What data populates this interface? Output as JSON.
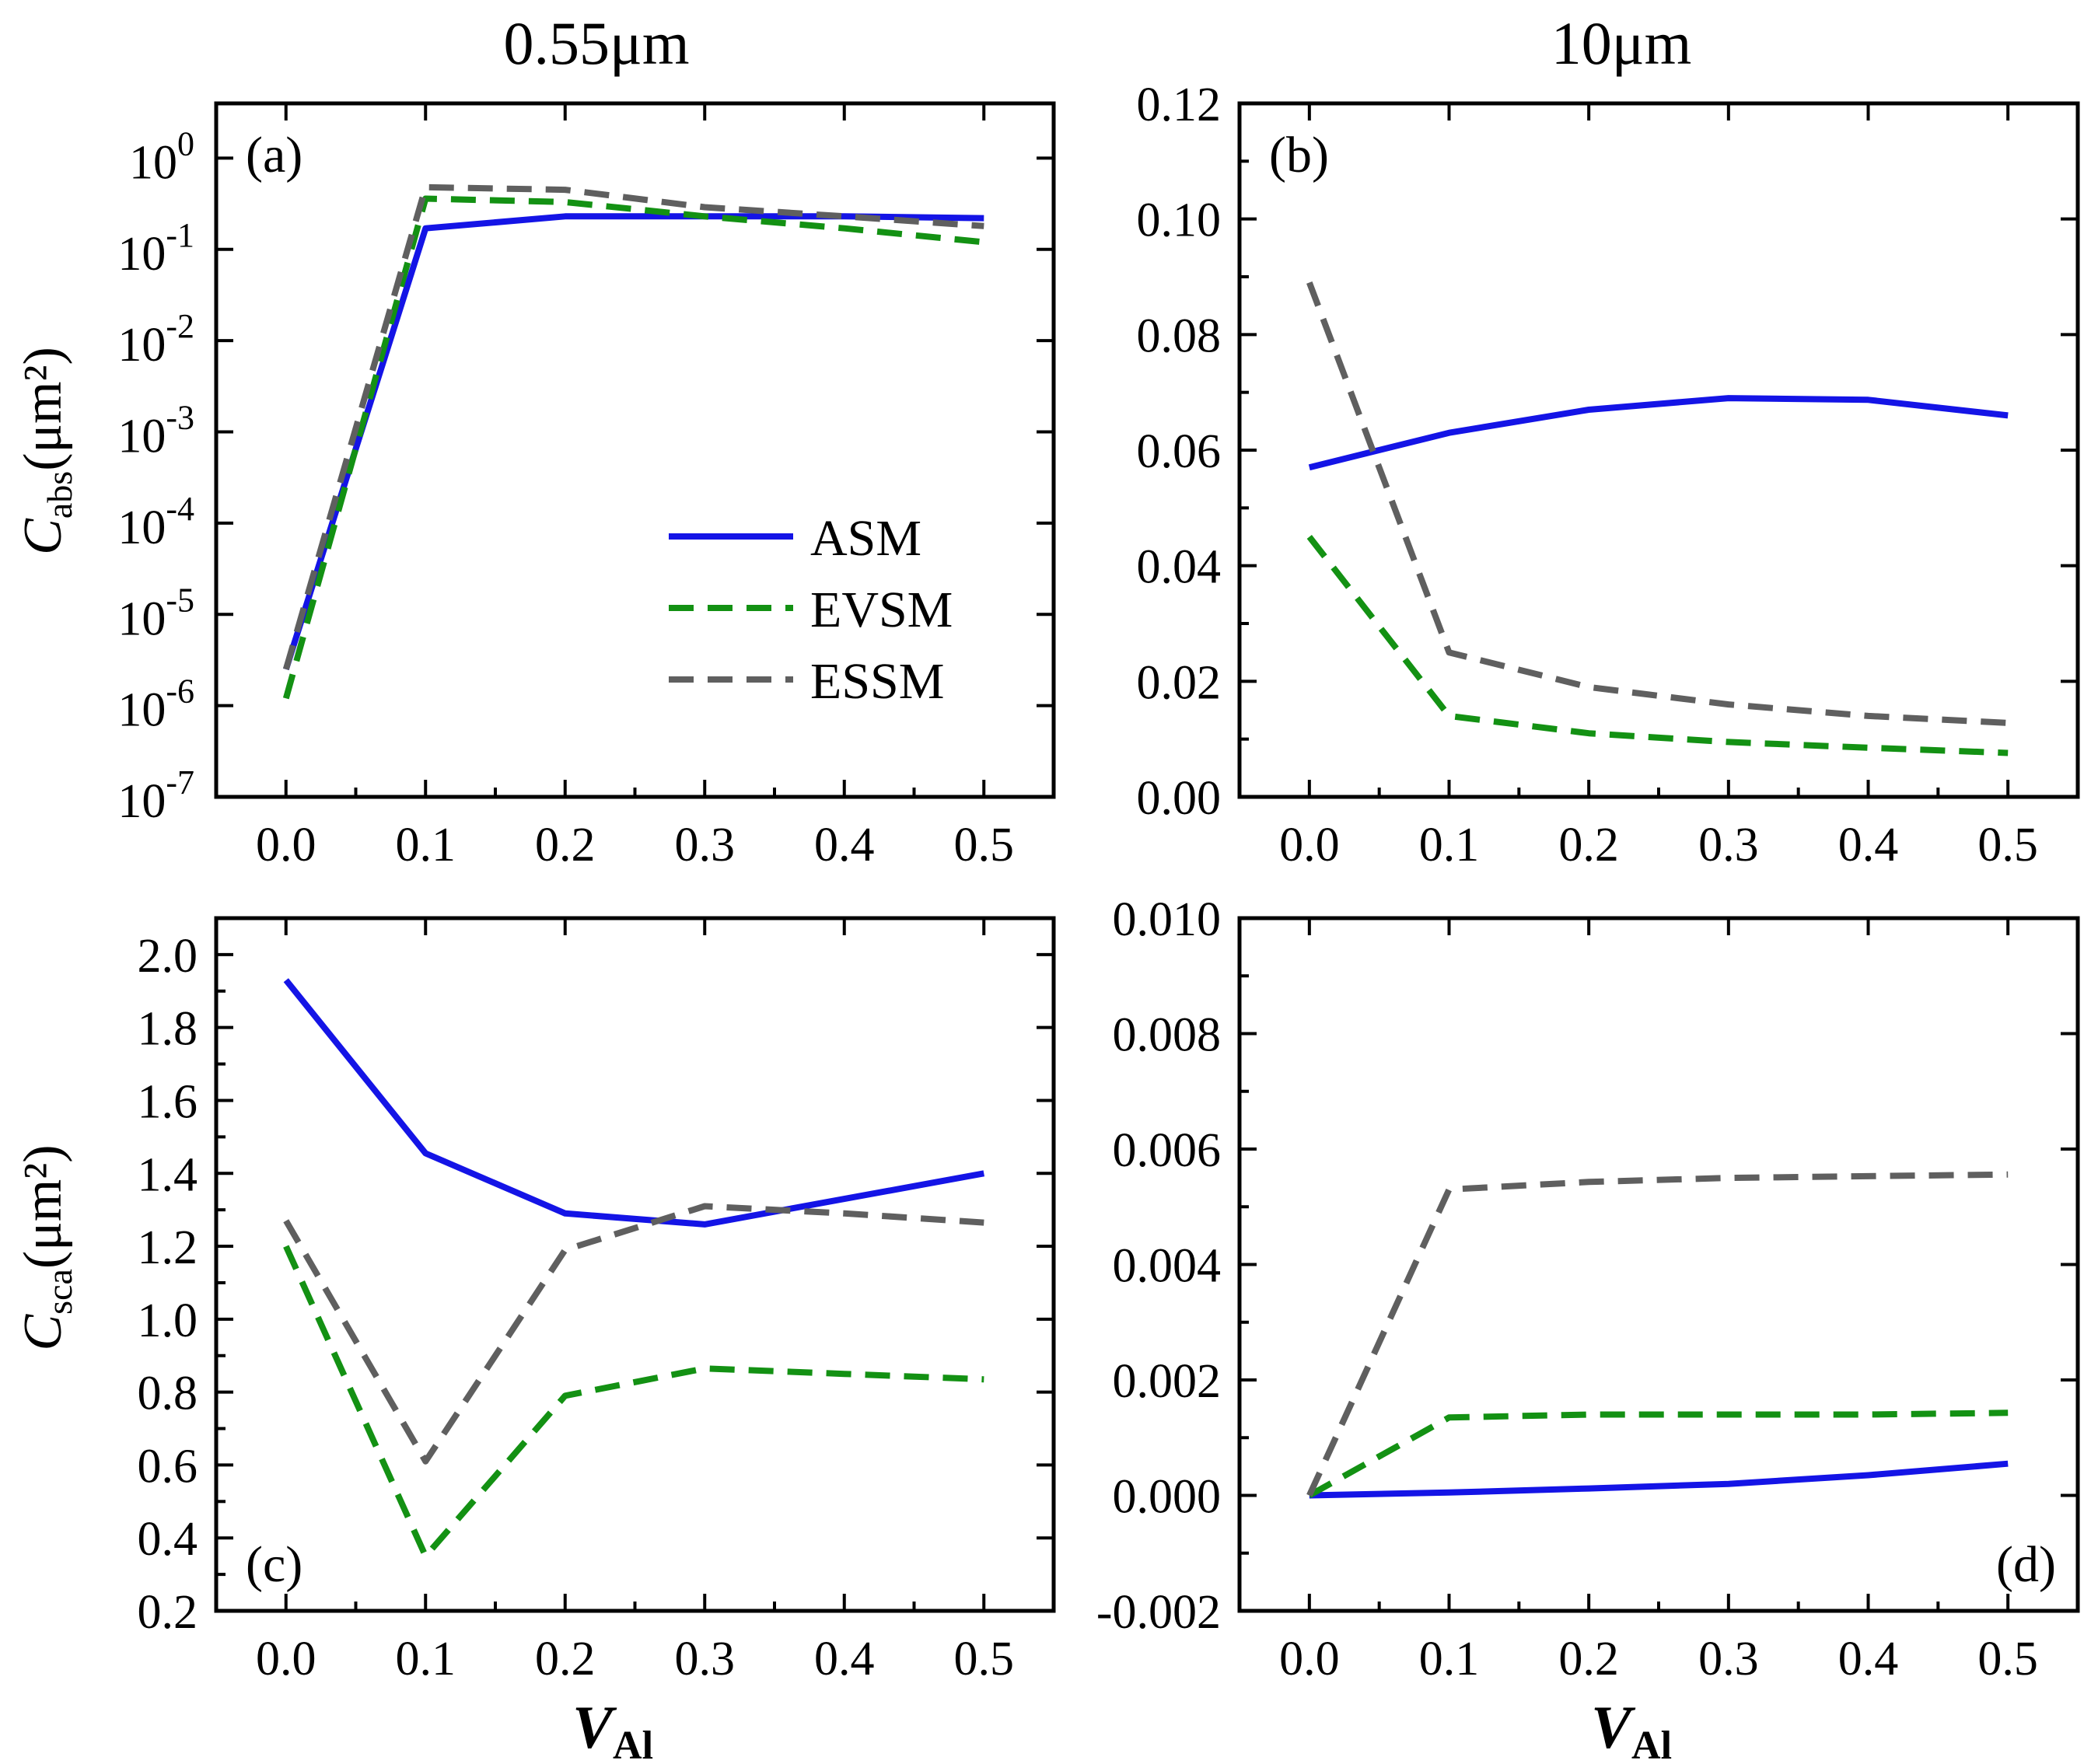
{
  "column_titles": [
    "0.55μm",
    "10μm"
  ],
  "x_axis_label": {
    "italic": "V",
    "sub": "Al"
  },
  "y_axis_labels": {
    "top": {
      "italic": "C",
      "sub": "abs",
      "rest": "(μm²)"
    },
    "bottom": {
      "italic": "C",
      "sub": "sca",
      "rest": "(μm²)"
    }
  },
  "legend": [
    {
      "label": "ASM",
      "color": "#1414e6",
      "dash": "solid"
    },
    {
      "label": "EVSM",
      "color": "#139113",
      "dash": "dashed"
    },
    {
      "label": "ESSM",
      "color": "#5f5f5f",
      "dash": "dashed"
    }
  ],
  "chart_data": [
    {
      "panel": "(a)",
      "type": "line",
      "yscale": "log",
      "x": [
        0.0,
        0.1,
        0.2,
        0.3,
        0.4,
        0.5
      ],
      "xlim": [
        -0.05,
        0.55
      ],
      "xticks": [
        "0.0",
        "0.1",
        "0.2",
        "0.3",
        "0.4",
        "0.5"
      ],
      "ylim_log10": [
        -7,
        0.6
      ],
      "ytick_exponents": [
        "0",
        "-1",
        "-2",
        "-3",
        "-4",
        "-5",
        "-6",
        "-7"
      ],
      "series": [
        {
          "name": "ASM",
          "values": [
            2.5e-06,
            0.17,
            0.23,
            0.23,
            0.23,
            0.22
          ]
        },
        {
          "name": "EVSM",
          "values": [
            1.2e-06,
            0.36,
            0.33,
            0.23,
            0.17,
            0.12
          ]
        },
        {
          "name": "ESSM",
          "values": [
            2.5e-06,
            0.48,
            0.45,
            0.29,
            0.23,
            0.18
          ]
        }
      ]
    },
    {
      "panel": "(b)",
      "type": "line",
      "x": [
        0.0,
        0.1,
        0.2,
        0.3,
        0.4,
        0.5
      ],
      "xlim": [
        -0.05,
        0.55
      ],
      "xticks": [
        "0.0",
        "0.1",
        "0.2",
        "0.3",
        "0.4",
        "0.5"
      ],
      "ylim": [
        0.0,
        0.12
      ],
      "yticks": [
        "0.00",
        "0.02",
        "0.04",
        "0.06",
        "0.08",
        "0.10",
        "0.12"
      ],
      "series": [
        {
          "name": "ASM",
          "values": [
            0.057,
            0.063,
            0.067,
            0.069,
            0.0687,
            0.066
          ]
        },
        {
          "name": "EVSM",
          "values": [
            0.045,
            0.014,
            0.011,
            0.0095,
            0.0085,
            0.0076
          ]
        },
        {
          "name": "ESSM",
          "values": [
            0.089,
            0.025,
            0.019,
            0.016,
            0.014,
            0.0128
          ]
        }
      ]
    },
    {
      "panel": "(c)",
      "type": "line",
      "x": [
        0.0,
        0.1,
        0.2,
        0.3,
        0.4,
        0.5
      ],
      "xlim": [
        -0.05,
        0.55
      ],
      "xticks": [
        "0.0",
        "0.1",
        "0.2",
        "0.3",
        "0.4",
        "0.5"
      ],
      "ylim": [
        0.2,
        2.1
      ],
      "yticks": [
        "0.2",
        "0.4",
        "0.6",
        "0.8",
        "1.0",
        "1.2",
        "1.4",
        "1.6",
        "1.8",
        "2.0"
      ],
      "series": [
        {
          "name": "ASM",
          "values": [
            1.93,
            1.455,
            1.29,
            1.26,
            1.33,
            1.4
          ]
        },
        {
          "name": "EVSM",
          "values": [
            1.2,
            0.35,
            0.79,
            0.865,
            0.85,
            0.835
          ]
        },
        {
          "name": "ESSM",
          "values": [
            1.27,
            0.61,
            1.19,
            1.31,
            1.29,
            1.265
          ]
        }
      ]
    },
    {
      "panel": "(d)",
      "type": "line",
      "x": [
        0.0,
        0.1,
        0.2,
        0.3,
        0.4,
        0.5
      ],
      "xlim": [
        -0.05,
        0.55
      ],
      "xticks": [
        "0.0",
        "0.1",
        "0.2",
        "0.3",
        "0.4",
        "0.5"
      ],
      "ylim": [
        -0.002,
        0.01
      ],
      "yticks": [
        "-0.002",
        "0.000",
        "0.002",
        "0.004",
        "0.006",
        "0.008",
        "0.010"
      ],
      "series": [
        {
          "name": "ASM",
          "values": [
            0.0,
            5e-05,
            0.00012,
            0.0002,
            0.00035,
            0.00055
          ]
        },
        {
          "name": "EVSM",
          "values": [
            0.0,
            0.00135,
            0.0014,
            0.0014,
            0.0014,
            0.00143
          ]
        },
        {
          "name": "ESSM",
          "values": [
            0.0,
            0.0053,
            0.00543,
            0.0055,
            0.00553,
            0.00556
          ]
        }
      ]
    }
  ]
}
